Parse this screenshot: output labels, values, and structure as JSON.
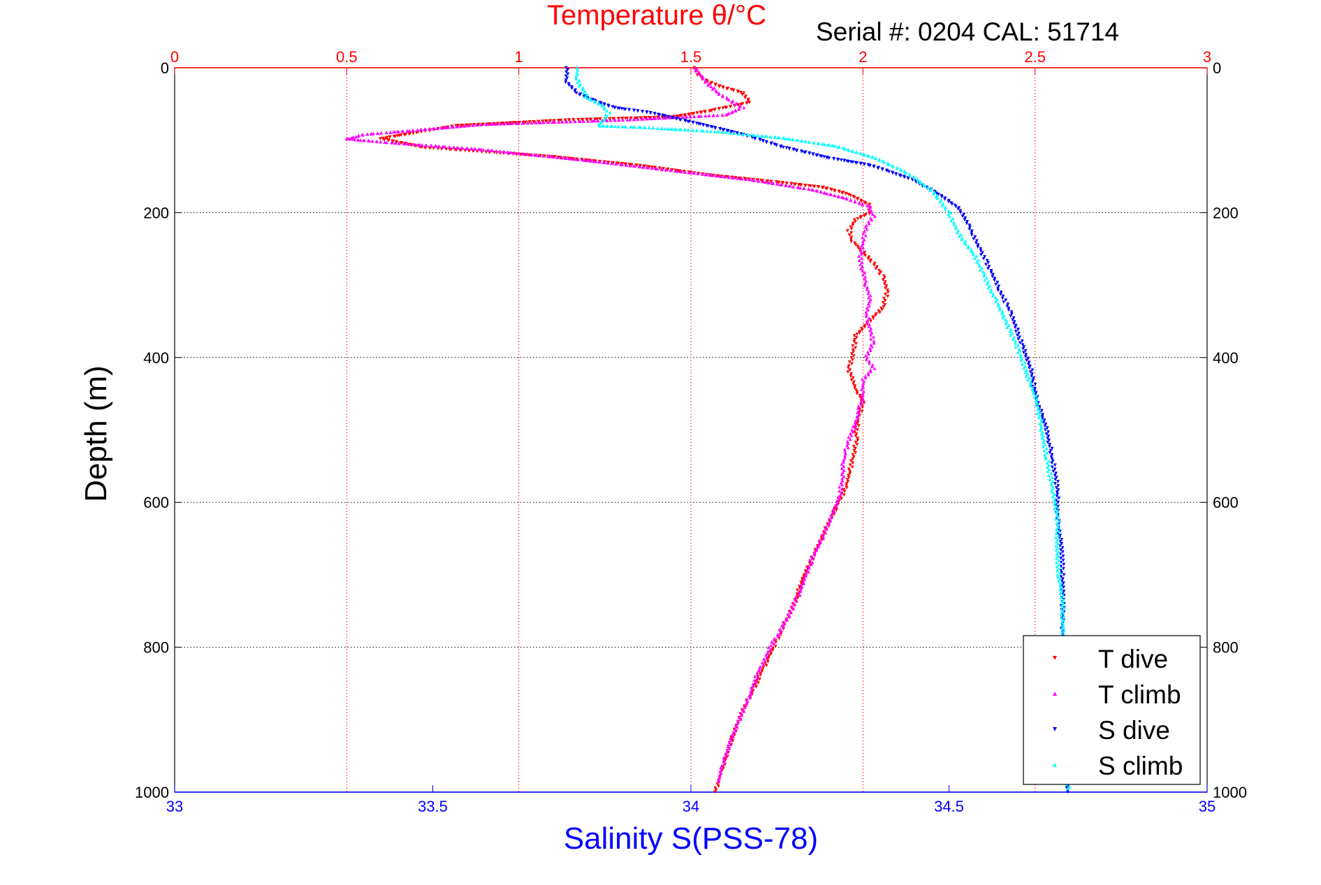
{
  "chart_data": {
    "type": "scatter",
    "title": "Temperature θ/°C",
    "subtitle": "Serial #: 0204  CAL: 51714",
    "ylabel": "Depth (m)",
    "xlabel_bottom": "Salinity S(PSS-78)",
    "y_axis": {
      "range": [
        0,
        1000
      ],
      "reversed": true,
      "ticks": [
        0,
        200,
        400,
        600,
        800,
        1000
      ],
      "tick_labels": [
        "0",
        "200",
        "400",
        "600",
        "800",
        "1000"
      ]
    },
    "x_axis_bottom": {
      "quantity": "salinity",
      "range": [
        33,
        35
      ],
      "ticks": [
        33,
        33.5,
        34,
        34.5,
        35
      ],
      "tick_labels": [
        "33",
        "33.5",
        "34",
        "34.5",
        "35"
      ],
      "color": "#0000ff"
    },
    "x_axis_top": {
      "quantity": "temperature",
      "range": [
        0,
        3
      ],
      "ticks": [
        0,
        0.5,
        1,
        1.5,
        2,
        2.5,
        3
      ],
      "tick_labels": [
        "0",
        "0.5",
        "1",
        "1.5",
        "2",
        "2.5",
        "3"
      ],
      "color": "#ff0000"
    },
    "grid": true,
    "legend_position": "bottom-right",
    "series": [
      {
        "name": "T dive",
        "axis": "top",
        "marker": "triangle-down",
        "color": "#ff0000",
        "points": [
          [
            1.51,
            0
          ],
          [
            1.53,
            15
          ],
          [
            1.58,
            25
          ],
          [
            1.65,
            35
          ],
          [
            1.67,
            48
          ],
          [
            1.55,
            60
          ],
          [
            1.45,
            68
          ],
          [
            1.15,
            72
          ],
          [
            0.82,
            80
          ],
          [
            0.72,
            88
          ],
          [
            0.6,
            98
          ],
          [
            0.72,
            110
          ],
          [
            1.1,
            123
          ],
          [
            1.35,
            135
          ],
          [
            1.55,
            148
          ],
          [
            1.75,
            158
          ],
          [
            1.88,
            165
          ],
          [
            1.96,
            175
          ],
          [
            2.02,
            190
          ],
          [
            2.02,
            200
          ],
          [
            1.98,
            210
          ],
          [
            1.96,
            225
          ],
          [
            1.97,
            240
          ],
          [
            2.0,
            255
          ],
          [
            2.03,
            270
          ],
          [
            2.06,
            290
          ],
          [
            2.07,
            310
          ],
          [
            2.06,
            330
          ],
          [
            2.02,
            350
          ],
          [
            1.98,
            370
          ],
          [
            1.97,
            395
          ],
          [
            1.96,
            420
          ],
          [
            1.98,
            445
          ],
          [
            2.0,
            460
          ],
          [
            1.99,
            480
          ],
          [
            1.98,
            500
          ],
          [
            1.98,
            520
          ],
          [
            1.97,
            540
          ],
          [
            1.96,
            560
          ],
          [
            1.95,
            580
          ],
          [
            1.93,
            600
          ],
          [
            1.9,
            630
          ],
          [
            1.87,
            660
          ],
          [
            1.83,
            700
          ],
          [
            1.8,
            740
          ],
          [
            1.76,
            780
          ],
          [
            1.72,
            820
          ],
          [
            1.68,
            860
          ],
          [
            1.64,
            900
          ],
          [
            1.61,
            940
          ],
          [
            1.59,
            970
          ],
          [
            1.57,
            1000
          ]
        ]
      },
      {
        "name": "T climb",
        "axis": "top",
        "marker": "triangle-up",
        "color": "#ff00ff",
        "points": [
          [
            1.51,
            0
          ],
          [
            1.53,
            10
          ],
          [
            1.55,
            22
          ],
          [
            1.58,
            35
          ],
          [
            1.65,
            55
          ],
          [
            1.6,
            65
          ],
          [
            1.3,
            72
          ],
          [
            0.9,
            78
          ],
          [
            0.55,
            92
          ],
          [
            0.5,
            98
          ],
          [
            0.62,
            103
          ],
          [
            0.9,
            113
          ],
          [
            1.2,
            128
          ],
          [
            1.45,
            142
          ],
          [
            1.68,
            155
          ],
          [
            1.85,
            168
          ],
          [
            1.95,
            180
          ],
          [
            2.02,
            192
          ],
          [
            2.03,
            205
          ],
          [
            2.01,
            220
          ],
          [
            2.0,
            240
          ],
          [
            1.99,
            260
          ],
          [
            2.0,
            280
          ],
          [
            2.01,
            300
          ],
          [
            2.02,
            320
          ],
          [
            2.01,
            340
          ],
          [
            2.02,
            360
          ],
          [
            2.03,
            380
          ],
          [
            2.01,
            400
          ],
          [
            2.03,
            415
          ],
          [
            2.0,
            430
          ],
          [
            2.0,
            455
          ],
          [
            1.99,
            470
          ],
          [
            1.98,
            490
          ],
          [
            1.96,
            510
          ],
          [
            1.95,
            530
          ],
          [
            1.94,
            550
          ],
          [
            1.94,
            570
          ],
          [
            1.93,
            590
          ],
          [
            1.91,
            620
          ],
          [
            1.88,
            650
          ],
          [
            1.85,
            680
          ],
          [
            1.82,
            720
          ],
          [
            1.78,
            760
          ],
          [
            1.73,
            800
          ],
          [
            1.69,
            840
          ],
          [
            1.66,
            880
          ],
          [
            1.63,
            910
          ],
          [
            1.6,
            950
          ],
          [
            1.58,
            985
          ]
        ]
      },
      {
        "name": "S dive",
        "axis": "bottom",
        "marker": "triangle-down",
        "color": "#0000ff",
        "points": [
          [
            33.76,
            0
          ],
          [
            33.76,
            20
          ],
          [
            33.78,
            35
          ],
          [
            33.81,
            45
          ],
          [
            33.85,
            55
          ],
          [
            33.92,
            62
          ],
          [
            33.97,
            70
          ],
          [
            34.03,
            80
          ],
          [
            34.1,
            92
          ],
          [
            34.18,
            110
          ],
          [
            34.27,
            125
          ],
          [
            34.35,
            135
          ],
          [
            34.43,
            155
          ],
          [
            34.48,
            175
          ],
          [
            34.52,
            195
          ],
          [
            34.54,
            220
          ],
          [
            34.56,
            250
          ],
          [
            34.58,
            280
          ],
          [
            34.6,
            310
          ],
          [
            34.62,
            340
          ],
          [
            34.64,
            380
          ],
          [
            34.66,
            420
          ],
          [
            34.67,
            460
          ],
          [
            34.69,
            500
          ],
          [
            34.7,
            540
          ],
          [
            34.71,
            580
          ],
          [
            34.71,
            620
          ],
          [
            34.72,
            680
          ],
          [
            34.72,
            740
          ],
          [
            34.72,
            800
          ],
          [
            34.73,
            860
          ],
          [
            34.73,
            920
          ],
          [
            34.73,
            1000
          ]
        ]
      },
      {
        "name": "S climb",
        "axis": "bottom",
        "marker": "triangle-up",
        "color": "#00ffff",
        "points": [
          [
            33.78,
            0
          ],
          [
            33.78,
            15
          ],
          [
            33.79,
            30
          ],
          [
            33.8,
            42
          ],
          [
            33.83,
            52
          ],
          [
            33.84,
            62
          ],
          [
            33.83,
            72
          ],
          [
            33.82,
            80
          ],
          [
            33.9,
            82
          ],
          [
            34.05,
            88
          ],
          [
            34.18,
            97
          ],
          [
            34.28,
            108
          ],
          [
            34.36,
            125
          ],
          [
            34.42,
            145
          ],
          [
            34.46,
            165
          ],
          [
            34.48,
            180
          ],
          [
            34.5,
            200
          ],
          [
            34.52,
            230
          ],
          [
            34.55,
            260
          ],
          [
            34.57,
            290
          ],
          [
            34.59,
            320
          ],
          [
            34.61,
            350
          ],
          [
            34.63,
            380
          ],
          [
            34.65,
            420
          ],
          [
            34.67,
            460
          ],
          [
            34.68,
            500
          ],
          [
            34.69,
            540
          ],
          [
            34.7,
            580
          ],
          [
            34.71,
            620
          ],
          [
            34.71,
            680
          ],
          [
            34.72,
            740
          ],
          [
            34.72,
            800
          ],
          [
            34.72,
            860
          ],
          [
            34.73,
            920
          ],
          [
            34.73,
            995
          ]
        ]
      }
    ]
  }
}
